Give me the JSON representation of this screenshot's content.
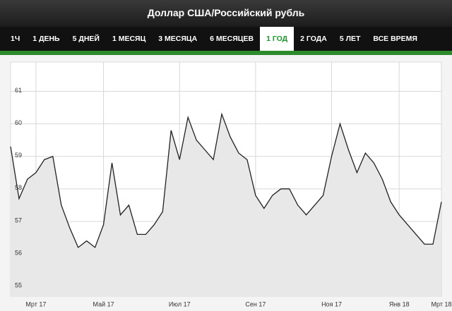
{
  "header": {
    "title": "Доллар США/Российский рубль"
  },
  "tabs": [
    "1Ч",
    "1 ДЕНЬ",
    "5 ДНЕЙ",
    "1 МЕСЯЦ",
    "3 МЕСЯЦА",
    "6 МЕСЯЦЕВ",
    "1 ГОД",
    "2 ГОДА",
    "5 ЛЕТ",
    "ВСЕ ВРЕМЯ"
  ],
  "active_tab": 6,
  "chart_data": {
    "type": "line",
    "categories": [
      null,
      null,
      null,
      "Мрт 17",
      null,
      null,
      null,
      null,
      null,
      null,
      null,
      "Май 17",
      null,
      null,
      null,
      null,
      null,
      null,
      null,
      null,
      "Июл 17",
      null,
      null,
      null,
      null,
      null,
      null,
      null,
      null,
      "Сен 17",
      null,
      null,
      null,
      null,
      null,
      null,
      null,
      null,
      "Ноя 17",
      null,
      null,
      null,
      null,
      null,
      null,
      null,
      "Янв 18",
      null,
      null,
      null,
      null,
      "Мрт 18"
    ],
    "series": [
      {
        "color": "#222222",
        "fill": "#e8e8e8",
        "values": [
          59.3,
          57.7,
          58.3,
          58.5,
          58.9,
          59.0,
          57.5,
          56.8,
          56.2,
          56.4,
          56.2,
          56.9,
          58.8,
          57.2,
          57.5,
          56.6,
          56.6,
          56.9,
          57.3,
          59.8,
          58.9,
          60.2,
          59.5,
          59.2,
          58.9,
          60.3,
          59.6,
          59.1,
          58.9,
          57.8,
          57.4,
          57.8,
          58.0,
          58.0,
          57.5,
          57.2,
          57.5,
          57.8,
          59.0,
          60.0,
          59.2,
          58.5,
          59.1,
          58.8,
          58.3,
          57.6,
          57.2,
          56.9,
          56.6,
          56.3,
          56.3,
          57.6
        ]
      }
    ],
    "ylim": [
      54.7,
      61.9
    ],
    "yticks": [
      55,
      56,
      57,
      58,
      59,
      60,
      61
    ],
    "grid": true
  }
}
